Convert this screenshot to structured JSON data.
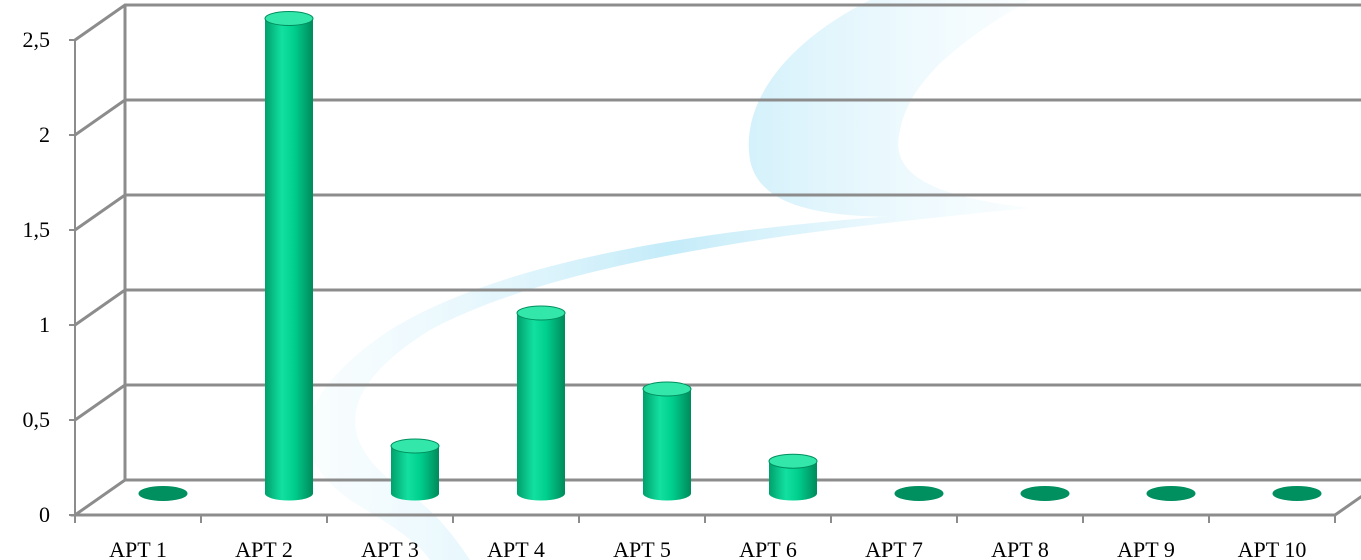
{
  "chart_data": {
    "type": "bar",
    "style": "3d-cylinder",
    "title": "",
    "xlabel": "",
    "ylabel": "",
    "categories": [
      "APT 1",
      "APT 2",
      "APT 3",
      "APT 4",
      "APT 5",
      "APT 6",
      "APT 7",
      "APT 8",
      "APT 9",
      "APT 10"
    ],
    "values": [
      0,
      2.5,
      0.25,
      0.95,
      0.55,
      0.17,
      0,
      0,
      0,
      0
    ],
    "yticks": [
      "0",
      "0,5",
      "1",
      "1,5",
      "2",
      "2,5"
    ],
    "ylim": [
      0,
      2.5
    ],
    "grid": true,
    "legend": "none",
    "colors": {
      "bar": "#00cc8a",
      "bar_dark": "#008f5e",
      "bar_light": "#33e6aa",
      "grid": "#8c8c8c",
      "background_swirl": "#bfe9f7"
    }
  }
}
